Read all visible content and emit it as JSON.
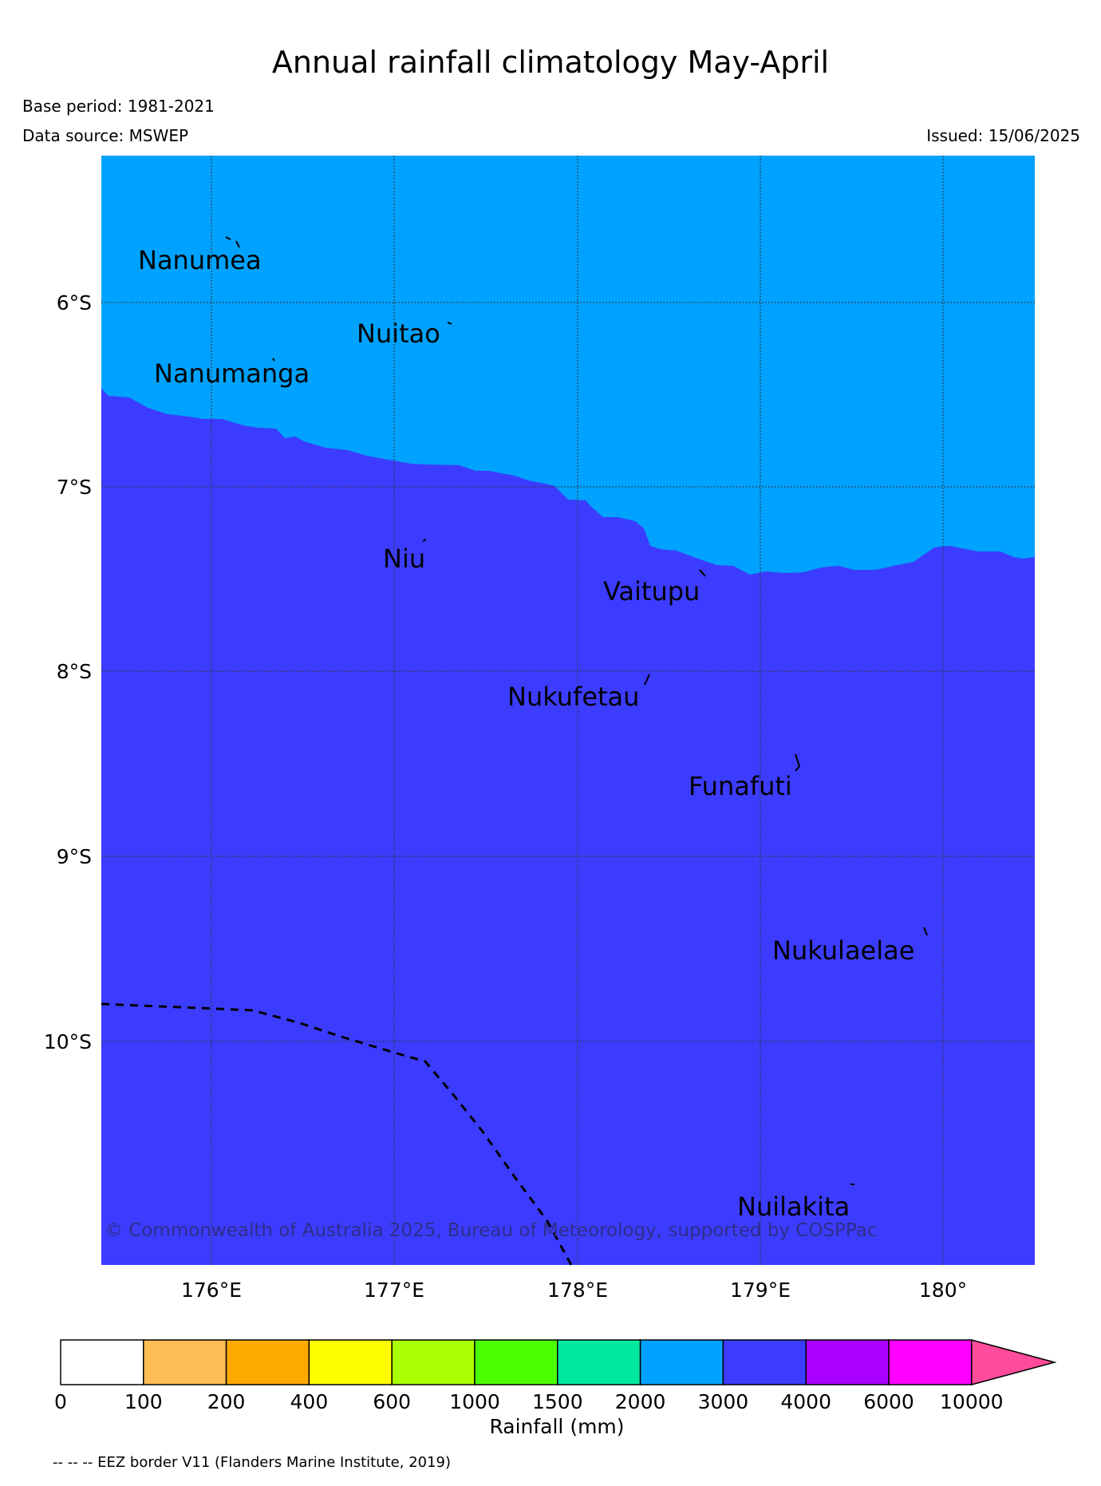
{
  "header": {
    "title": "Annual rainfall climatology May-April",
    "base_period": "Base period: 1981-2021",
    "data_source": "Data source: MSWEP",
    "issued": "Issued: 15/06/2025"
  },
  "map": {
    "lat_labels": [
      "6°S",
      "7°S",
      "8°S",
      "9°S",
      "10°S"
    ],
    "lon_labels": [
      "176°E",
      "177°E",
      "178°E",
      "179°E",
      "180°"
    ],
    "islands": [
      "Nanumea",
      "Nuitao",
      "Nanumanga",
      "Niu",
      "Vaitupu",
      "Nukufetau",
      "Funafuti",
      "Nukulaelae",
      "Nuilakita"
    ],
    "copyright": "© Commonwealth of Australia 2025, Bureau of Meteorology, supported by COSPPac",
    "fill_colors": {
      "2000-3000": "#00a2ff",
      "3000-4000": "#3c3cff"
    }
  },
  "colorbar": {
    "boundaries": [
      "0",
      "100",
      "200",
      "400",
      "600",
      "1000",
      "1500",
      "2000",
      "3000",
      "4000",
      "6000",
      "10000"
    ],
    "colors": [
      "#ffffff",
      "#ffbe55",
      "#ffaa00",
      "#ffff00",
      "#aaff00",
      "#4cff00",
      "#00e8a0",
      "#00a2ff",
      "#3c3cff",
      "#aa00ff",
      "#ff00ff",
      "#ff4b9b"
    ],
    "label": "Rainfall (mm)"
  },
  "footnote": "-- -- -- EEZ border V11 (Flanders Marine Institute, 2019)"
}
